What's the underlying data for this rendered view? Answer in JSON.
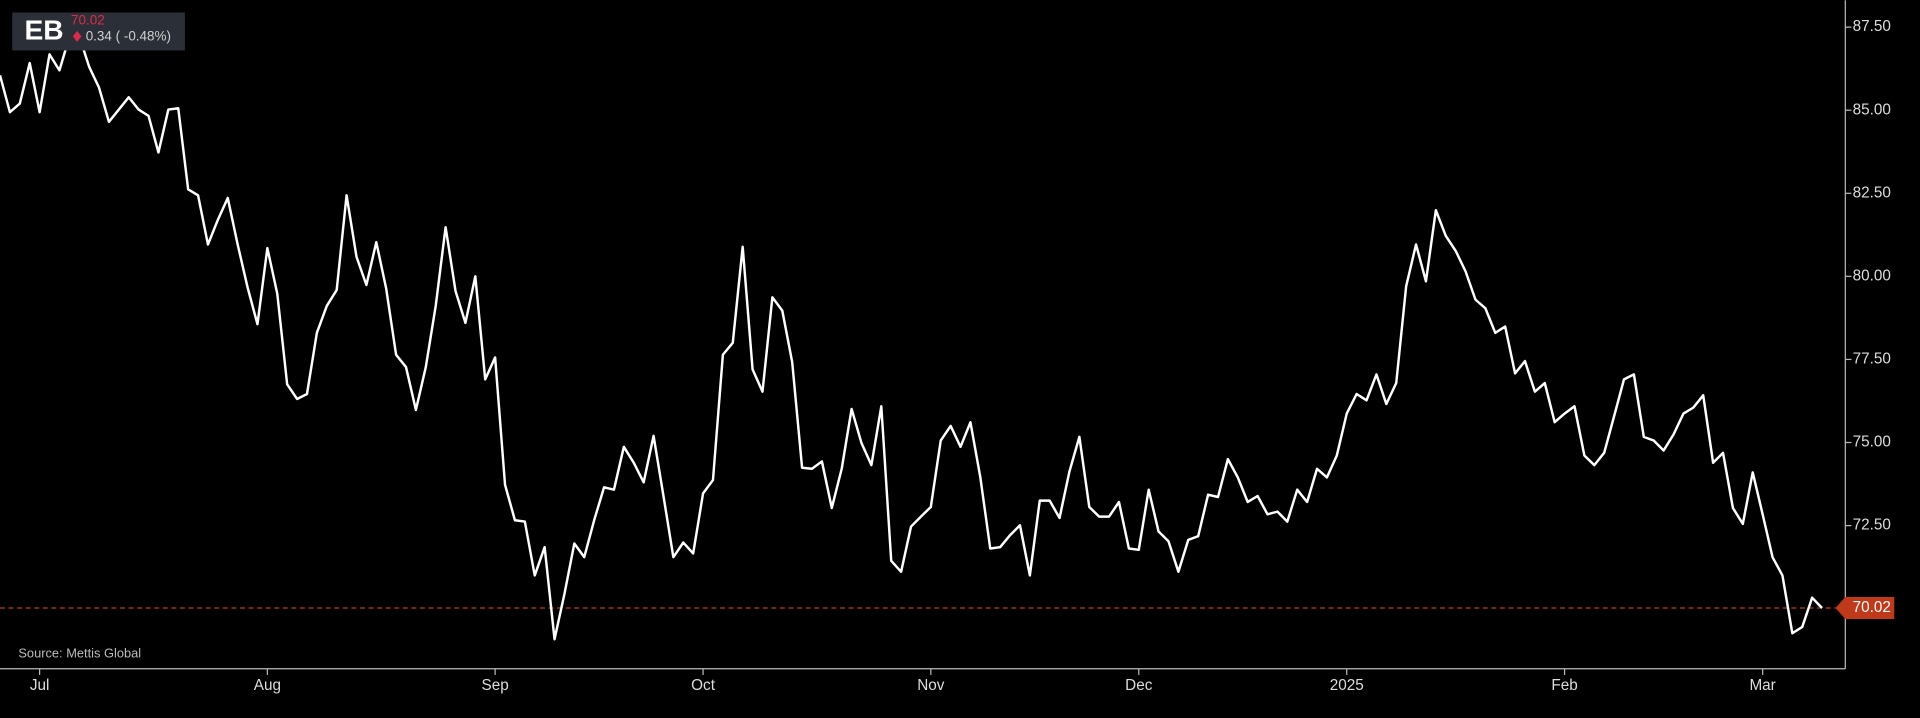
{
  "chart_data": {
    "type": "line",
    "ticker": "EB",
    "last_price": 70.02,
    "change": "0.34 ( -0.48%)",
    "source": "Source: Mettis Global",
    "categories": [
      null,
      null,
      null,
      null,
      "Jul",
      null,
      null,
      null,
      null,
      null,
      null,
      null,
      null,
      null,
      null,
      null,
      null,
      null,
      null,
      null,
      null,
      null,
      null,
      null,
      null,
      null,
      null,
      "Aug",
      null,
      null,
      null,
      null,
      null,
      null,
      null,
      null,
      null,
      null,
      null,
      null,
      null,
      null,
      null,
      null,
      null,
      null,
      null,
      null,
      null,
      null,
      "Sep",
      null,
      null,
      null,
      null,
      null,
      null,
      null,
      null,
      null,
      null,
      null,
      null,
      null,
      null,
      null,
      null,
      null,
      null,
      null,
      null,
      "Oct",
      null,
      null,
      null,
      null,
      null,
      null,
      null,
      null,
      null,
      null,
      null,
      null,
      null,
      null,
      null,
      null,
      null,
      null,
      null,
      null,
      null,
      null,
      "Nov",
      null,
      null,
      null,
      null,
      null,
      null,
      null,
      null,
      null,
      null,
      null,
      null,
      null,
      null,
      null,
      null,
      null,
      null,
      null,
      null,
      "Dec",
      null,
      null,
      null,
      null,
      null,
      null,
      null,
      null,
      null,
      null,
      null,
      null,
      null,
      null,
      null,
      null,
      null,
      null,
      null,
      null,
      "2025",
      null,
      null,
      null,
      null,
      null,
      null,
      null,
      null,
      null,
      null,
      null,
      null,
      null,
      null,
      null,
      null,
      null,
      null,
      null,
      null,
      null,
      "Feb",
      null,
      null,
      null,
      null,
      null,
      null,
      null,
      null,
      null,
      null,
      null,
      null,
      null,
      null,
      null,
      null,
      null,
      null,
      null,
      "Mar",
      null,
      null,
      null,
      null,
      null,
      null
    ],
    "series": [
      {
        "color": "#ffffff",
        "values": [
          86.05,
          84.94,
          85.2,
          86.42,
          84.94,
          86.68,
          86.2,
          87.2,
          87.23,
          86.31,
          85.68,
          84.65,
          85.02,
          85.39,
          85.02,
          84.83,
          83.73,
          85.02,
          85.06,
          82.62,
          82.44,
          80.96,
          81.7,
          82.36,
          80.96,
          79.67,
          78.56,
          80.85,
          79.48,
          76.75,
          76.31,
          76.46,
          78.3,
          79.11,
          79.59,
          82.44,
          80.59,
          79.74,
          81.03,
          79.63,
          77.64,
          77.27,
          75.98,
          77.27,
          79.11,
          81.48,
          79.56,
          78.6,
          80.0,
          76.9,
          77.56,
          73.73,
          72.66,
          72.62,
          71.0,
          71.85,
          69.08,
          70.44,
          71.96,
          71.55,
          72.66,
          73.65,
          73.58,
          74.87,
          74.39,
          73.8,
          75.2,
          73.39,
          71.55,
          71.99,
          71.66,
          73.47,
          73.87,
          77.64,
          78.0,
          80.89,
          77.2,
          76.53,
          79.37,
          78.97,
          77.42,
          74.24,
          74.21,
          74.43,
          73.03,
          74.21,
          76.01,
          74.98,
          74.32,
          76.09,
          71.44,
          71.11,
          72.47,
          72.77,
          73.06,
          75.06,
          75.5,
          74.87,
          75.61,
          73.95,
          71.81,
          71.85,
          72.21,
          72.51,
          71.0,
          73.25,
          73.25,
          72.73,
          74.13,
          75.17,
          73.06,
          72.77,
          72.77,
          73.21,
          71.81,
          71.77,
          73.58,
          72.32,
          72.03,
          71.11,
          72.07,
          72.18,
          73.43,
          73.36,
          74.5,
          73.95,
          73.21,
          73.39,
          72.84,
          72.92,
          72.62,
          73.58,
          73.21,
          74.21,
          73.95,
          74.61,
          75.87,
          76.46,
          76.27,
          77.05,
          76.16,
          76.79,
          79.7,
          80.96,
          79.85,
          81.99,
          81.22,
          80.77,
          80.15,
          79.3,
          79.04,
          78.3,
          78.49,
          77.08,
          77.45,
          76.53,
          76.79,
          75.61,
          75.87,
          76.09,
          74.61,
          74.32,
          74.69,
          75.79,
          76.9,
          77.05,
          75.17,
          75.06,
          74.76,
          75.24,
          75.87,
          76.05,
          76.42,
          74.39,
          74.69,
          73.03,
          72.55,
          74.1,
          72.84,
          71.55,
          71.0,
          69.26,
          69.45,
          70.33,
          70.02
        ]
      }
    ],
    "ylim": [
      68.19,
      88.31
    ],
    "yticks": [
      {
        "value": 72.5,
        "label": "72.50"
      },
      {
        "value": 75,
        "label": "75.00"
      },
      {
        "value": 77.5,
        "label": "77.50"
      },
      {
        "value": 80,
        "label": "80.00"
      },
      {
        "value": 82.5,
        "label": "82.50"
      },
      {
        "value": 85,
        "label": "85.00"
      },
      {
        "value": 87.5,
        "label": "87.50"
      }
    ],
    "grid": false
  }
}
